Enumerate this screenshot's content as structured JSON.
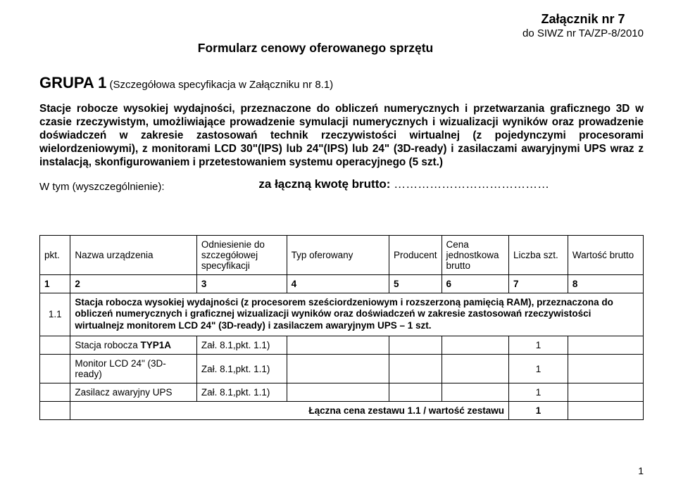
{
  "header": {
    "attachment_line1": "Załącznik nr 7",
    "attachment_line2": "do SIWZ nr TA/ZP-8/2010",
    "form_title": "Formularz cenowy oferowanego sprzętu"
  },
  "grupa": {
    "label": "GRUPA 1",
    "note": "(Szczegółowa specyfikacja w Załączniku nr 8.1)"
  },
  "body_text": "Stacje robocze wysokiej wydajności, przeznaczone do obliczeń numerycznych i przetwarzania graficznego 3D w czasie rzeczywistym, umożliwiające prowadzenie symulacji numerycznych i wizualizacji wyników oraz prowadzenie doświadczeń w zakresie zastosowań technik rzeczywistości wirtualnej (z pojedynczymi procesorami wielordzeniowymi), z monitorami LCD 30\"(IPS) lub 24\"(IPS) lub 24\" (3D-ready) i zasilaczami awaryjnymi UPS wraz z instalacją, skonfigurowaniem i przetestowaniem systemu operacyjnego (5 szt.)",
  "wtym": {
    "left": "W tym (wyszczególnienie):",
    "center": "za łączną kwotę brutto:",
    "dots": "…………………………………"
  },
  "columns": {
    "c1": "pkt.",
    "c2": "Nazwa urządzenia",
    "c3": "Odniesienie do szczegółowej specyfikacji",
    "c4": "Typ oferowany",
    "c5": "Producent",
    "c6": "Cena jednostkowa brutto",
    "c7": "Liczba szt.",
    "c8": "Wartość brutto"
  },
  "num_row": [
    "1",
    "2",
    "3",
    "4",
    "5",
    "6",
    "7",
    "8"
  ],
  "desc": {
    "pkt": "1.1",
    "text": "Stacja robocza wysokiej wydajności (z procesorem sześciordzeniowym i rozszerzoną pamięcią RAM), przeznaczona do obliczeń numerycznych i graficznej wizualizacji wyników oraz doświadczeń w zakresie zastosowań rzeczywistości wirtualnejz monitorem LCD 24\" (3D-ready) i zasilaczem awaryjnym UPS – 1 szt."
  },
  "rows": [
    {
      "nazwa_html": "Stacja robocza <b>TYP1A</b>",
      "nazwa": "Stacja robocza TYP1A",
      "odniesienie": "Zał. 8.1,pkt. 1.1)",
      "liczba": "1"
    },
    {
      "nazwa_html": "Monitor LCD 24\" (3D-ready)",
      "nazwa": "Monitor LCD 24\" (3D-ready)",
      "odniesienie": "Zał. 8.1,pkt. 1.1)",
      "liczba": "1"
    },
    {
      "nazwa_html": "Zasilacz awaryjny UPS",
      "nazwa": "Zasilacz awaryjny UPS",
      "odniesienie": "Zał. 8.1,pkt. 1.1)",
      "liczba": "1"
    }
  ],
  "total_row": {
    "label": "Łączna cena zestawu 1.1 / wartość zestawu",
    "liczba": "1"
  },
  "page_number": "1"
}
